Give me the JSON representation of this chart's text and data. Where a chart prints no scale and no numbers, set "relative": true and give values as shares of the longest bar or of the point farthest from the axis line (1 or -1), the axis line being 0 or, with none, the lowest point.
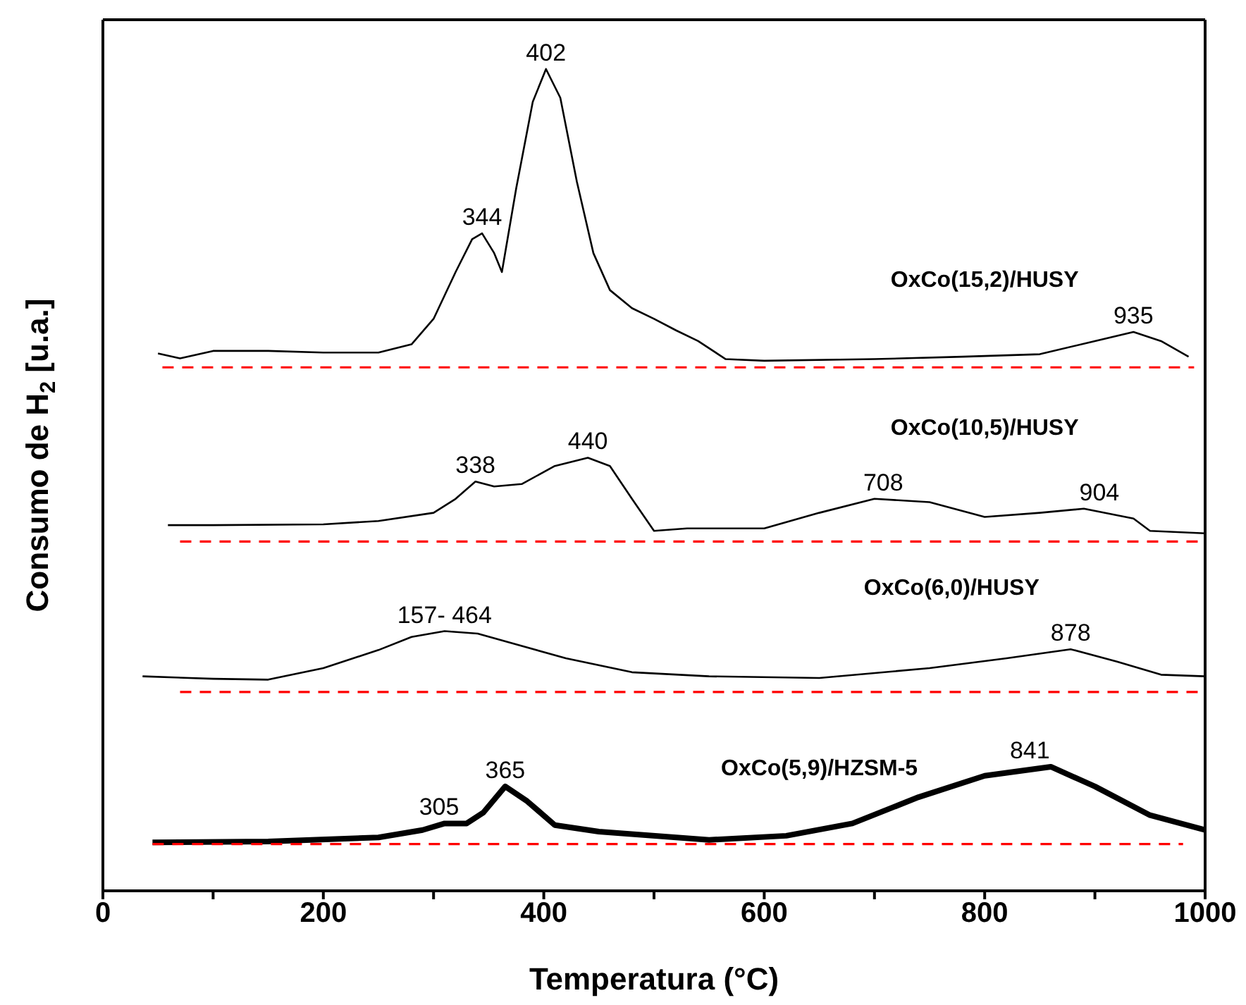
{
  "chart_data": {
    "type": "line",
    "relative": true,
    "xlabel": "Temperatura (°C)",
    "ylabel": "Consumo de H$_{2}$ [u.a.]",
    "xlim": [
      0,
      1000
    ],
    "xticks": [
      0,
      {
        "value": 100,
        "label": null
      },
      200,
      {
        "value": 300,
        "label": null
      },
      400,
      {
        "value": 500,
        "label": null
      },
      600,
      {
        "value": 700,
        "label": null
      },
      800,
      {
        "value": 900,
        "label": null
      },
      1000
    ],
    "series": [
      {
        "name": "OxCo(15,2)/HUSY",
        "color": "#000000",
        "x": [
          50,
          70,
          100,
          150,
          200,
          250,
          280,
          300,
          320,
          335,
          344,
          355,
          362,
          375,
          390,
          402,
          415,
          430,
          445,
          460,
          480,
          500,
          520,
          540,
          565,
          600,
          700,
          780,
          850,
          900,
          935,
          960,
          985
        ],
        "values": [
          0.654,
          0.648,
          0.657,
          0.657,
          0.655,
          0.655,
          0.665,
          0.696,
          0.753,
          0.793,
          0.8,
          0.776,
          0.753,
          0.855,
          0.96,
          1,
          0.965,
          0.863,
          0.776,
          0.731,
          0.709,
          0.696,
          0.682,
          0.669,
          0.647,
          0.645,
          0.647,
          0.65,
          0.653,
          0.669,
          0.68,
          0.669,
          0.65
        ]
      },
      {
        "name": "OxCo(10,5)/HUSY",
        "color": "#000000",
        "x": [
          59,
          100,
          200,
          250,
          300,
          320,
          338,
          355,
          380,
          410,
          440,
          460,
          480,
          500,
          530,
          600,
          650,
          700,
          750,
          800,
          850,
          890,
          935,
          950,
          1000
        ],
        "values": [
          0.445,
          0.445,
          0.446,
          0.45,
          0.46,
          0.477,
          0.498,
          0.492,
          0.495,
          0.517,
          0.527,
          0.517,
          0.477,
          0.438,
          0.441,
          0.441,
          0.46,
          0.477,
          0.473,
          0.455,
          0.46,
          0.465,
          0.453,
          0.438,
          0.435
        ]
      },
      {
        "name": "OxCo(6,0)/HUSY",
        "color": "#000000",
        "x": [
          36,
          100,
          150,
          200,
          250,
          280,
          310,
          340,
          380,
          420,
          480,
          550,
          650,
          750,
          820,
          878,
          920,
          960,
          1000
        ],
        "values": [
          0.261,
          0.258,
          0.257,
          0.271,
          0.293,
          0.309,
          0.316,
          0.313,
          0.298,
          0.283,
          0.266,
          0.261,
          0.259,
          0.271,
          0.283,
          0.294,
          0.279,
          0.263,
          0.261
        ]
      },
      {
        "name": "OxCo(5,9)/HZSM-5",
        "color": "#000000",
        "x": [
          45,
          150,
          250,
          290,
          310,
          330,
          345,
          365,
          385,
          410,
          450,
          550,
          620,
          680,
          740,
          800,
          860,
          900,
          950,
          1000
        ],
        "values": [
          0.059,
          0.06,
          0.065,
          0.074,
          0.082,
          0.082,
          0.095,
          0.127,
          0.109,
          0.08,
          0.072,
          0.062,
          0.067,
          0.082,
          0.114,
          0.14,
          0.151,
          0.127,
          0.092,
          0.074
        ]
      },
      {
        "color": "#ff0000",
        "line_style": "dashed",
        "x": [
          54,
          990
        ],
        "values": [
          0.637,
          0.637
        ]
      },
      {
        "color": "#ff0000",
        "line_style": "dashed",
        "x": [
          70,
          995
        ],
        "values": [
          0.425,
          0.425
        ]
      },
      {
        "color": "#ff0000",
        "line_style": "dashed",
        "x": [
          70,
          995
        ],
        "values": [
          0.242,
          0.242
        ]
      },
      {
        "color": "#ff0000",
        "line_style": "dashed",
        "x": [
          45,
          980
        ],
        "values": [
          0.057,
          0.057
        ]
      }
    ],
    "annotations": [
      {
        "text": "344",
        "x": 344,
        "y": 0.8
      },
      {
        "text": "402",
        "x": 402,
        "y": 1
      },
      {
        "text": "935",
        "x": 935,
        "y": 0.68
      },
      {
        "text": "338",
        "x": 338,
        "y": 0.498
      },
      {
        "text": "440",
        "x": 440,
        "y": 0.527
      },
      {
        "text": "708",
        "x": 708,
        "y": 0.477
      },
      {
        "text": "904",
        "x": 904,
        "y": 0.465
      },
      {
        "text": "157- 464",
        "x": 310,
        "y": 0.316
      },
      {
        "text": "878",
        "x": 878,
        "y": 0.294
      },
      {
        "text": "305",
        "x": 305,
        "y": 0.082
      },
      {
        "text": "365",
        "x": 365,
        "y": 0.127
      },
      {
        "text": "841",
        "x": 841,
        "y": 0.151
      }
    ]
  }
}
